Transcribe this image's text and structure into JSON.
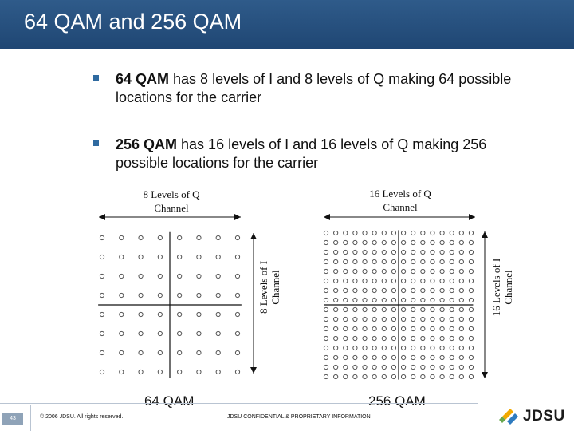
{
  "title": "64 QAM and 256 QAM",
  "bullets": [
    {
      "bold": "64 QAM",
      "rest": " has 8 levels of I and 8 levels of Q making 64 possible locations for the carrier"
    },
    {
      "bold": "256 QAM",
      "rest": " has 16 levels of I and 16 levels of Q making 256 possible locations for the carrier"
    }
  ],
  "diagram": {
    "qam64": {
      "levels": 8,
      "q_label_line1": "8 Levels of  Q",
      "q_label_line2": "Channel",
      "i_label_line1": "8 Levels of  I",
      "i_label_line2": "Channel",
      "caption": "64 QAM"
    },
    "qam256": {
      "levels": 16,
      "q_label_line1": "16 Levels of  Q",
      "q_label_line2": "Channel",
      "i_label_line1": "16 Levels of I",
      "i_label_line2": "Channel",
      "caption": "256 QAM"
    }
  },
  "footer": {
    "page_number": "43",
    "copyright": "© 2006 JDSU. All rights reserved.",
    "confidential": "JDSU CONFIDENTIAL & PROPRIETARY INFORMATION",
    "logo_text": "JDSU"
  },
  "colors": {
    "title_bar": "#1f4673",
    "bullet_marker": "#2f6aa0",
    "dot_stroke": "#555555"
  }
}
